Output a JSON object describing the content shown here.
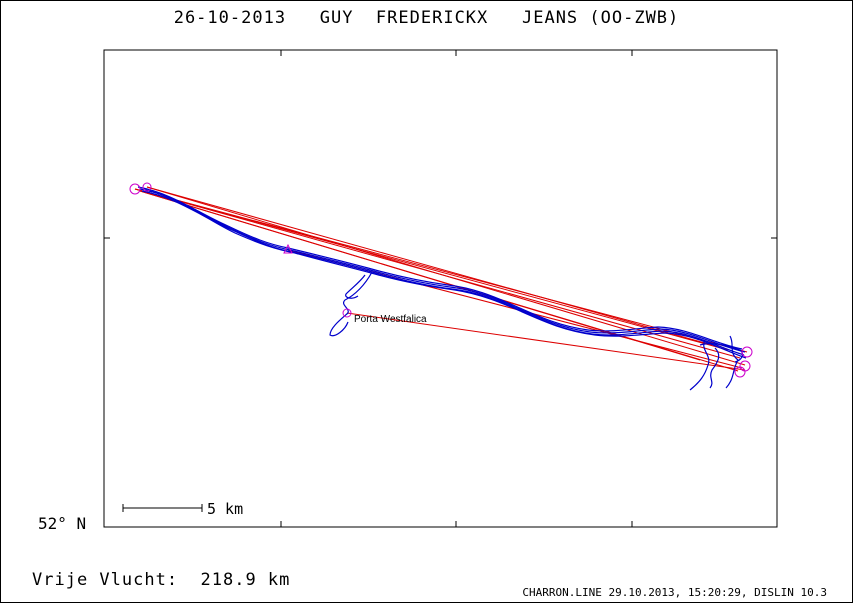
{
  "header": {
    "title": "26-10-2013   GUY  FREDERICKX   JEANS (OO-ZWB)"
  },
  "map": {
    "lat_label": "52° N",
    "scale_label": "5 km",
    "place_label": "Porta Westfalica"
  },
  "footer": {
    "flight_label": "Vrije Vlucht:  218.9 km",
    "credit": "CHARRON.LINE 29.10.2013, 15:20:29, DISLIN 10.3"
  },
  "colors": {
    "track": "#0000cc",
    "legs": "#dd0000",
    "turnpoints": "#cc00cc"
  },
  "chart_data": {
    "type": "scatter",
    "title": "26-10-2013   GUY  FREDERICKX   JEANS (OO-ZWB)",
    "xlabel": "",
    "ylabel": "",
    "series": []
  }
}
